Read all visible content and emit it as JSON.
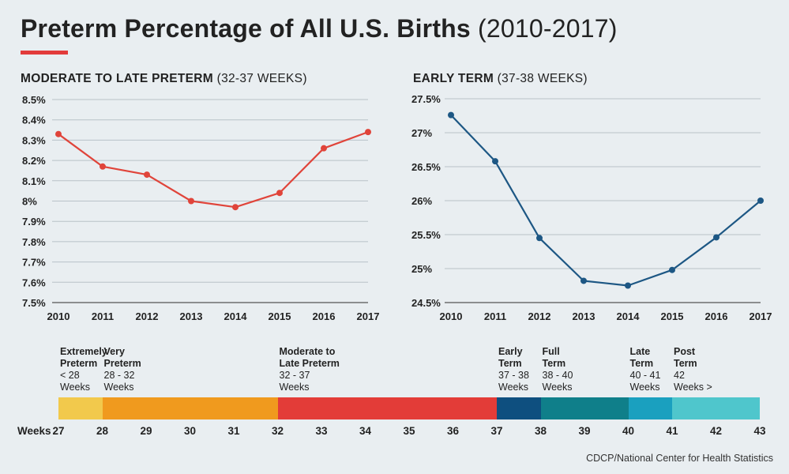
{
  "header": {
    "title_main": "Preterm Percentage of All U.S. Births",
    "title_sub": "(2010-2017)",
    "accent_color": "#e23b3b"
  },
  "chart_data": [
    {
      "type": "line",
      "title_bold": "MODERATE TO LATE PRETERM",
      "title_light": "(32-37 WEEKS)",
      "x": [
        "2010",
        "2011",
        "2012",
        "2013",
        "2014",
        "2015",
        "2016",
        "2017"
      ],
      "series": [
        {
          "values": [
            8.33,
            8.17,
            8.13,
            8.0,
            7.97,
            8.04,
            8.26,
            8.34
          ],
          "color": "#e0443a"
        }
      ],
      "ylim": [
        7.5,
        8.5
      ],
      "yticks": [
        8.5,
        8.4,
        8.3,
        8.2,
        8.1,
        8.0,
        7.9,
        7.8,
        7.7,
        7.6,
        7.5
      ],
      "ytick_labels": [
        "8.5%",
        "8.4%",
        "8.3%",
        "8.2%",
        "8.1%",
        "8%",
        "7.9%",
        "7.8%",
        "7.7%",
        "7.6%",
        "7.5%"
      ],
      "grid": true
    },
    {
      "type": "line",
      "title_bold": "EARLY TERM",
      "title_light": "(37-38 WEEKS)",
      "x": [
        "2010",
        "2011",
        "2012",
        "2013",
        "2014",
        "2015",
        "2016",
        "2017"
      ],
      "series": [
        {
          "values": [
            27.26,
            26.58,
            25.45,
            24.82,
            24.75,
            24.98,
            25.46,
            26.0
          ],
          "color": "#1d5784"
        }
      ],
      "ylim": [
        24.5,
        27.5
      ],
      "yticks": [
        27.5,
        27,
        26.5,
        26,
        25.5,
        25,
        24.5
      ],
      "ytick_labels": [
        "27.5%",
        "27%",
        "26.5%",
        "26%",
        "25.5%",
        "25%",
        "24.5%"
      ],
      "grid": true
    }
  ],
  "gestation_scale": {
    "caption": "Weeks",
    "ticks": [
      "27",
      "28",
      "29",
      "30",
      "31",
      "32",
      "33",
      "34",
      "35",
      "36",
      "37",
      "38",
      "39",
      "40",
      "41",
      "42",
      "43"
    ],
    "bands": [
      {
        "name_lines": [
          "Extremely",
          "Preterm"
        ],
        "range_lines": [
          "< 28",
          "Weeks"
        ],
        "start": 27,
        "end": 28,
        "color": "#f2c94c"
      },
      {
        "name_lines": [
          "Very",
          "Preterm"
        ],
        "range_lines": [
          "28 - 32",
          "Weeks"
        ],
        "start": 28,
        "end": 32,
        "color": "#f09a1e"
      },
      {
        "name_lines": [
          "Moderate to",
          "Late Preterm"
        ],
        "range_lines": [
          "32 - 37",
          "Weeks"
        ],
        "start": 32,
        "end": 37,
        "color": "#e33c38"
      },
      {
        "name_lines": [
          "Early",
          "Term"
        ],
        "range_lines": [
          "37 - 38",
          "Weeks"
        ],
        "start": 37,
        "end": 38,
        "color": "#0e4f7f"
      },
      {
        "name_lines": [
          "Full",
          "Term"
        ],
        "range_lines": [
          "38 - 40",
          "Weeks"
        ],
        "start": 38,
        "end": 40,
        "color": "#0f7f8a"
      },
      {
        "name_lines": [
          "Late",
          "Term"
        ],
        "range_lines": [
          "40 - 41",
          "Weeks"
        ],
        "start": 40,
        "end": 41,
        "color": "#1aa0bf"
      },
      {
        "name_lines": [
          "Post",
          "Term"
        ],
        "range_lines": [
          "42",
          "Weeks >"
        ],
        "start": 41,
        "end": 43,
        "color": "#4fc6cc"
      }
    ]
  },
  "footer": {
    "source": "CDCP/National Center for Health Statistics"
  }
}
